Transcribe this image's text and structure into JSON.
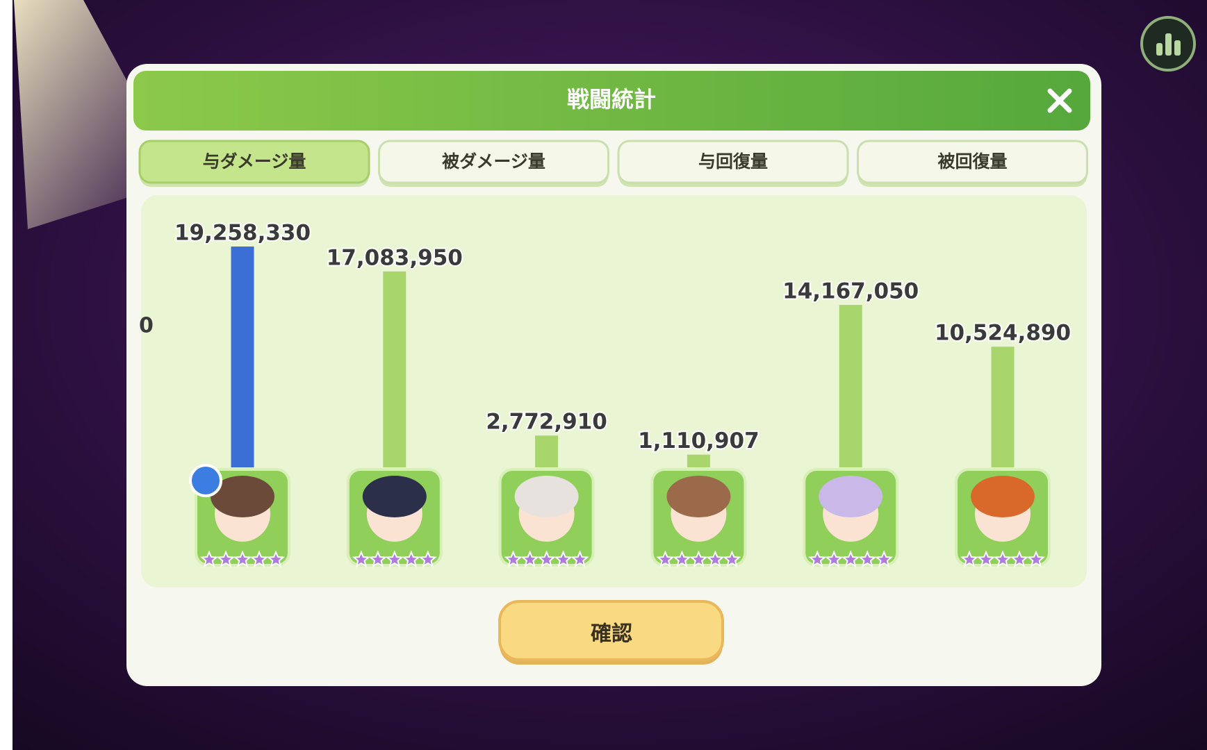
{
  "header": {
    "title": "戦闘統計"
  },
  "tabs": [
    "与ダメージ量",
    "被ダメージ量",
    "与回復量",
    "被回復量"
  ],
  "active_tab": 0,
  "clipped_label": "0",
  "chart_data": {
    "type": "bar",
    "values": [
      19258330,
      17083950,
      2772910,
      1110907,
      14167050,
      10524890
    ],
    "value_labels": [
      "19,258,330",
      "17,083,950",
      "2,772,910",
      "1,110,907",
      "14,167,050",
      "10,524,890"
    ],
    "colors": [
      "#3b6fd6",
      "#a8d66c",
      "#a8d66c",
      "#a8d66c",
      "#a8d66c",
      "#a8d66c"
    ]
  },
  "button": {
    "label": "確認"
  }
}
